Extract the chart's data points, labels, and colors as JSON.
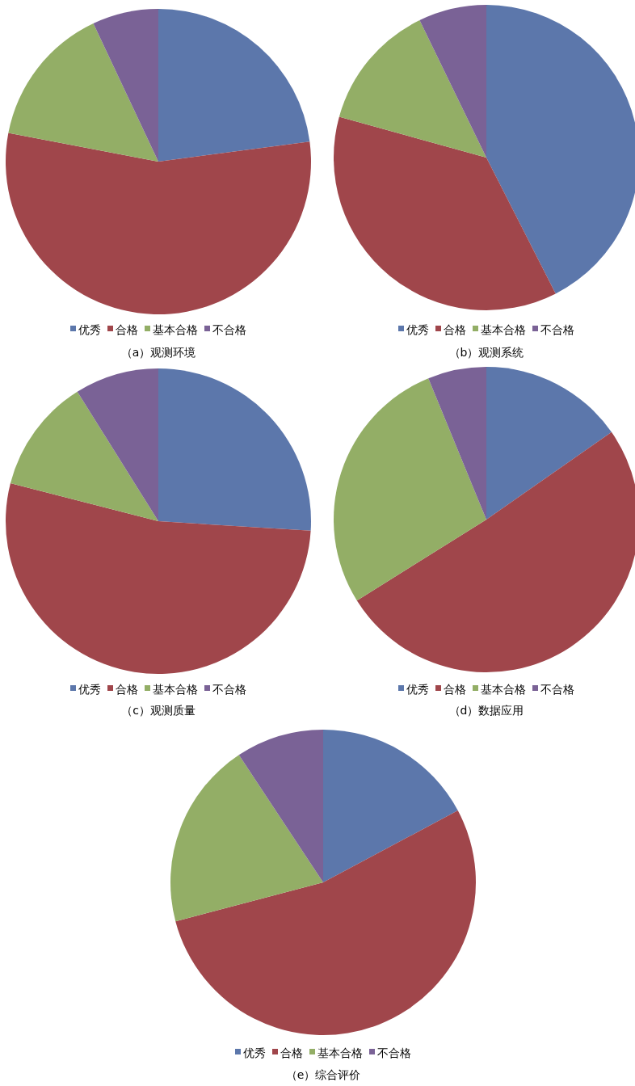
{
  "chart_data": [
    {
      "type": "pie",
      "title": "（a）观测环境",
      "categories": [
        "优秀",
        "合格",
        "基本合格",
        "不合格"
      ],
      "values": [
        22.9,
        55.1,
        15.0,
        7.0
      ],
      "colors": [
        "#5c77ab",
        "#a0464b",
        "#93ae66",
        "#7a6296"
      ],
      "legend": "bottom"
    },
    {
      "type": "pie",
      "title": "（b）观测系统",
      "categories": [
        "优秀",
        "合格",
        "基本合格",
        "不合格"
      ],
      "values": [
        42.5,
        36.8,
        13.5,
        7.2
      ],
      "colors": [
        "#5c77ab",
        "#a0464b",
        "#93ae66",
        "#7a6296"
      ],
      "legend": "bottom"
    },
    {
      "type": "pie",
      "title": "（c）观测质量",
      "categories": [
        "优秀",
        "合格",
        "基本合格",
        "不合格"
      ],
      "values": [
        26.0,
        53.0,
        12.1,
        8.9
      ],
      "colors": [
        "#5c77ab",
        "#a0464b",
        "#93ae66",
        "#7a6296"
      ],
      "legend": "bottom"
    },
    {
      "type": "pie",
      "title": "（d）数据应用",
      "categories": [
        "优秀",
        "合格",
        "基本合格",
        "不合格"
      ],
      "values": [
        15.3,
        50.8,
        27.7,
        6.2
      ],
      "colors": [
        "#5c77ab",
        "#a0464b",
        "#93ae66",
        "#7a6296"
      ],
      "legend": "bottom"
    },
    {
      "type": "pie",
      "title": "（e）综合评价",
      "categories": [
        "优秀",
        "合格",
        "基本合格",
        "不合格"
      ],
      "values": [
        17.2,
        53.7,
        19.8,
        9.3
      ],
      "colors": [
        "#5c77ab",
        "#a0464b",
        "#93ae66",
        "#7a6296"
      ],
      "legend": "bottom"
    }
  ]
}
